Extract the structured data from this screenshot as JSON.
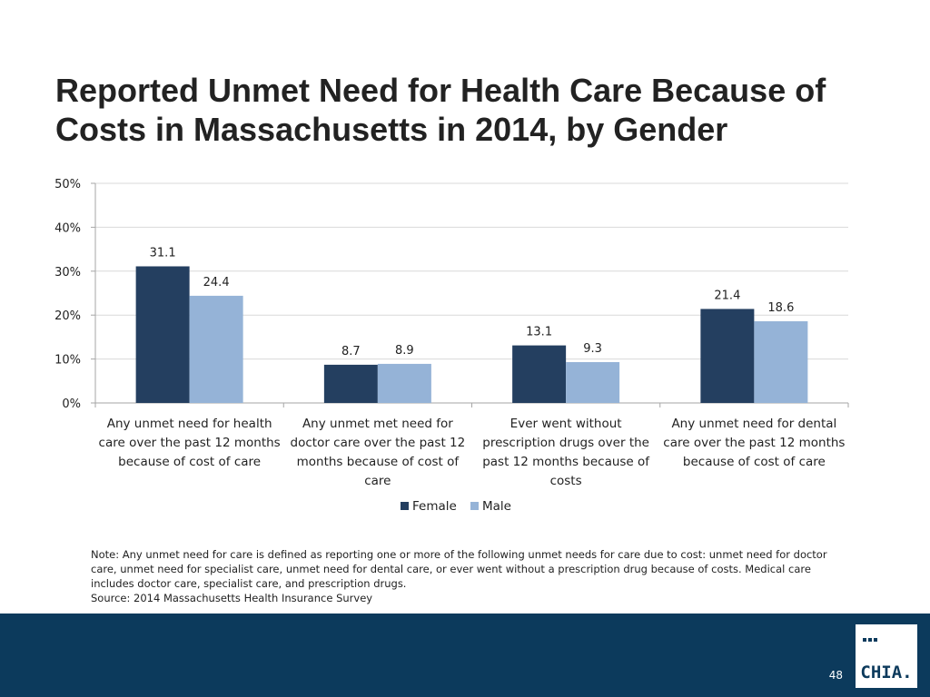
{
  "title": {
    "line1": "Reported Unmet Need for Health Care Because of",
    "line2": "Costs in Massachusetts in 2014, by Gender"
  },
  "chart_data": {
    "type": "bar",
    "title": "",
    "xlabel": "",
    "ylabel": "",
    "ylim": [
      0,
      50
    ],
    "yticks": [
      "0%",
      "10%",
      "20%",
      "30%",
      "40%",
      "50%"
    ],
    "grid": true,
    "legend_position": "bottom",
    "categories": [
      [
        "Any unmet need for health",
        "care over the past 12 months",
        "because of cost of care"
      ],
      [
        "Any unmet met need for",
        "doctor care over the past 12",
        "months because of cost of",
        "care"
      ],
      [
        "Ever went without",
        "prescription drugs over the",
        "past 12 months because of",
        "costs"
      ],
      [
        "Any unmet need for dental",
        "care over the past 12 months",
        "because of cost of care"
      ]
    ],
    "series": [
      {
        "name": "Female",
        "color": "#243f60",
        "values": [
          31.1,
          8.7,
          13.1,
          21.4
        ],
        "labels": [
          "31.1",
          "8.7",
          "13.1",
          "21.4"
        ]
      },
      {
        "name": "Male",
        "color": "#95b3d7",
        "values": [
          24.4,
          8.9,
          9.3,
          18.6
        ],
        "labels": [
          "24.4",
          "8.9",
          "9.3",
          "18.6"
        ]
      }
    ]
  },
  "note": {
    "lines": [
      "Note: Any unmet need for care is defined as reporting one or more of the following unmet needs for care due to cost: unmet need for doctor",
      "care, unmet need for specialist care, unmet need for dental care, or ever went without a prescription drug because of costs. Medical care",
      "includes doctor care, specialist care, and prescription drugs."
    ],
    "source": "Source:  2014 Massachusetts Health Insurance Survey"
  },
  "footer": {
    "page_number": "48",
    "logo_text": "CHIA.",
    "color": "#0c3a5c"
  }
}
